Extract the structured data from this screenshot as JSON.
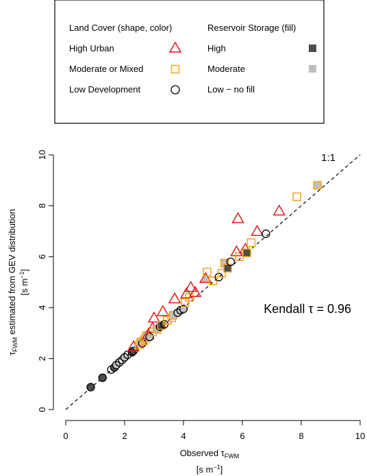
{
  "legend": {
    "land_cover_title": "Land Cover (shape, color)",
    "reservoir_title": "Reservoir Storage (fill)",
    "land_cover_items": [
      {
        "label": "High Urban",
        "marker": "triangle-icon",
        "color": "#e31a1c"
      },
      {
        "label": "Moderate or Mixed",
        "marker": "square-icon",
        "color": "#f5a21b"
      },
      {
        "label": "Low Development",
        "marker": "circle-icon",
        "color": "#000000"
      }
    ],
    "reservoir_items": [
      {
        "label": "High",
        "fill": "#4d4d4d"
      },
      {
        "label": "Moderate",
        "fill": "#bfbfbf"
      },
      {
        "label": "Low − no fill",
        "fill": "none"
      }
    ]
  },
  "chart_data": {
    "type": "scatter",
    "xlabel_main": "Observed τ",
    "xlabel_sub": "FWM",
    "xlabel_units": "[s m",
    "xlabel_units_exp": "−1",
    "xlabel_units_close": "]",
    "ylabel_main": "τ",
    "ylabel_sub": "FWM",
    "ylabel_rest": " estimated from GEV distribution",
    "ylabel_units": "[s m",
    "ylabel_units_exp": "−1",
    "ylabel_units_close": "]",
    "xlim": [
      0,
      10
    ],
    "ylim": [
      0,
      10
    ],
    "xticks": [
      0,
      2,
      4,
      6,
      8,
      10
    ],
    "yticks": [
      0,
      2,
      4,
      6,
      8,
      10
    ],
    "grid": false,
    "reference_line_label": "1:1",
    "annotation": "Kendall τ = 0.96",
    "colors": {
      "high_urban": "#e31a1c",
      "moderate": "#f5a21b",
      "low": "#000000",
      "fill_high": "#4d4d4d",
      "fill_moderate": "#bfbfbf"
    },
    "points": [
      {
        "x": 0.85,
        "y": 0.88,
        "cover": "low",
        "storage": "high"
      },
      {
        "x": 1.25,
        "y": 1.25,
        "cover": "low",
        "storage": "high"
      },
      {
        "x": 1.55,
        "y": 1.57,
        "cover": "low",
        "storage": "none"
      },
      {
        "x": 1.65,
        "y": 1.65,
        "cover": "low",
        "storage": "high"
      },
      {
        "x": 1.72,
        "y": 1.75,
        "cover": "low",
        "storage": "moderate"
      },
      {
        "x": 1.82,
        "y": 1.85,
        "cover": "low",
        "storage": "none"
      },
      {
        "x": 1.92,
        "y": 1.95,
        "cover": "low",
        "storage": "none"
      },
      {
        "x": 2.0,
        "y": 2.05,
        "cover": "low",
        "storage": "moderate"
      },
      {
        "x": 2.1,
        "y": 2.15,
        "cover": "low",
        "storage": "none"
      },
      {
        "x": 2.25,
        "y": 2.25,
        "cover": "low",
        "storage": "high"
      },
      {
        "x": 2.3,
        "y": 2.3,
        "cover": "low",
        "storage": "none"
      },
      {
        "x": 2.3,
        "y": 2.47,
        "cover": "high",
        "storage": "none"
      },
      {
        "x": 2.5,
        "y": 2.55,
        "cover": "moderate",
        "storage": "none"
      },
      {
        "x": 2.55,
        "y": 2.65,
        "cover": "moderate",
        "storage": "moderate"
      },
      {
        "x": 2.6,
        "y": 2.6,
        "cover": "low",
        "storage": "none"
      },
      {
        "x": 2.65,
        "y": 2.7,
        "cover": "moderate",
        "storage": "none"
      },
      {
        "x": 2.7,
        "y": 2.8,
        "cover": "moderate",
        "storage": "none"
      },
      {
        "x": 2.75,
        "y": 2.9,
        "cover": "moderate",
        "storage": "moderate"
      },
      {
        "x": 2.8,
        "y": 2.95,
        "cover": "high",
        "storage": "none"
      },
      {
        "x": 2.85,
        "y": 2.85,
        "cover": "low",
        "storage": "moderate"
      },
      {
        "x": 2.95,
        "y": 3.05,
        "cover": "moderate",
        "storage": "none"
      },
      {
        "x": 2.95,
        "y": 3.2,
        "cover": "high",
        "storage": "none"
      },
      {
        "x": 3.0,
        "y": 3.6,
        "cover": "high",
        "storage": "none"
      },
      {
        "x": 3.1,
        "y": 3.15,
        "cover": "moderate",
        "storage": "moderate"
      },
      {
        "x": 3.2,
        "y": 3.25,
        "cover": "low",
        "storage": "high"
      },
      {
        "x": 3.25,
        "y": 3.3,
        "cover": "moderate",
        "storage": "high"
      },
      {
        "x": 3.3,
        "y": 3.85,
        "cover": "high",
        "storage": "none"
      },
      {
        "x": 3.35,
        "y": 3.35,
        "cover": "low",
        "storage": "none"
      },
      {
        "x": 3.45,
        "y": 3.5,
        "cover": "moderate",
        "storage": "none"
      },
      {
        "x": 3.6,
        "y": 3.6,
        "cover": "moderate",
        "storage": "none"
      },
      {
        "x": 3.65,
        "y": 3.7,
        "cover": "moderate",
        "storage": "moderate"
      },
      {
        "x": 3.7,
        "y": 4.35,
        "cover": "high",
        "storage": "none"
      },
      {
        "x": 3.8,
        "y": 3.8,
        "cover": "low",
        "storage": "moderate"
      },
      {
        "x": 3.9,
        "y": 3.9,
        "cover": "low",
        "storage": "none"
      },
      {
        "x": 4.0,
        "y": 3.95,
        "cover": "low",
        "storage": "moderate"
      },
      {
        "x": 4.05,
        "y": 4.2,
        "cover": "moderate",
        "storage": "none"
      },
      {
        "x": 4.1,
        "y": 4.55,
        "cover": "high",
        "storage": "none"
      },
      {
        "x": 4.2,
        "y": 4.4,
        "cover": "moderate",
        "storage": "none"
      },
      {
        "x": 4.25,
        "y": 4.8,
        "cover": "high",
        "storage": "none"
      },
      {
        "x": 4.4,
        "y": 4.6,
        "cover": "high",
        "storage": "none"
      },
      {
        "x": 4.75,
        "y": 5.15,
        "cover": "high",
        "storage": "moderate"
      },
      {
        "x": 4.8,
        "y": 5.4,
        "cover": "moderate",
        "storage": "none"
      },
      {
        "x": 5.0,
        "y": 5.05,
        "cover": "moderate",
        "storage": "none"
      },
      {
        "x": 5.2,
        "y": 5.2,
        "cover": "low",
        "storage": "none"
      },
      {
        "x": 5.3,
        "y": 5.35,
        "cover": "moderate",
        "storage": "none"
      },
      {
        "x": 5.4,
        "y": 5.75,
        "cover": "moderate",
        "storage": "moderate"
      },
      {
        "x": 5.5,
        "y": 5.55,
        "cover": "moderate",
        "storage": "high"
      },
      {
        "x": 5.6,
        "y": 5.8,
        "cover": "low",
        "storage": "none"
      },
      {
        "x": 5.8,
        "y": 6.2,
        "cover": "high",
        "storage": "none"
      },
      {
        "x": 5.85,
        "y": 7.5,
        "cover": "high",
        "storage": "none"
      },
      {
        "x": 5.9,
        "y": 6.0,
        "cover": "moderate",
        "storage": "none"
      },
      {
        "x": 6.1,
        "y": 6.3,
        "cover": "high",
        "storage": "none"
      },
      {
        "x": 6.15,
        "y": 6.15,
        "cover": "moderate",
        "storage": "high"
      },
      {
        "x": 6.3,
        "y": 6.55,
        "cover": "moderate",
        "storage": "none"
      },
      {
        "x": 6.5,
        "y": 7.0,
        "cover": "high",
        "storage": "none"
      },
      {
        "x": 6.8,
        "y": 6.9,
        "cover": "low",
        "storage": "none"
      },
      {
        "x": 7.25,
        "y": 7.8,
        "cover": "high",
        "storage": "none"
      },
      {
        "x": 7.85,
        "y": 8.35,
        "cover": "moderate",
        "storage": "none"
      },
      {
        "x": 8.55,
        "y": 8.8,
        "cover": "moderate",
        "storage": "moderate"
      }
    ]
  }
}
